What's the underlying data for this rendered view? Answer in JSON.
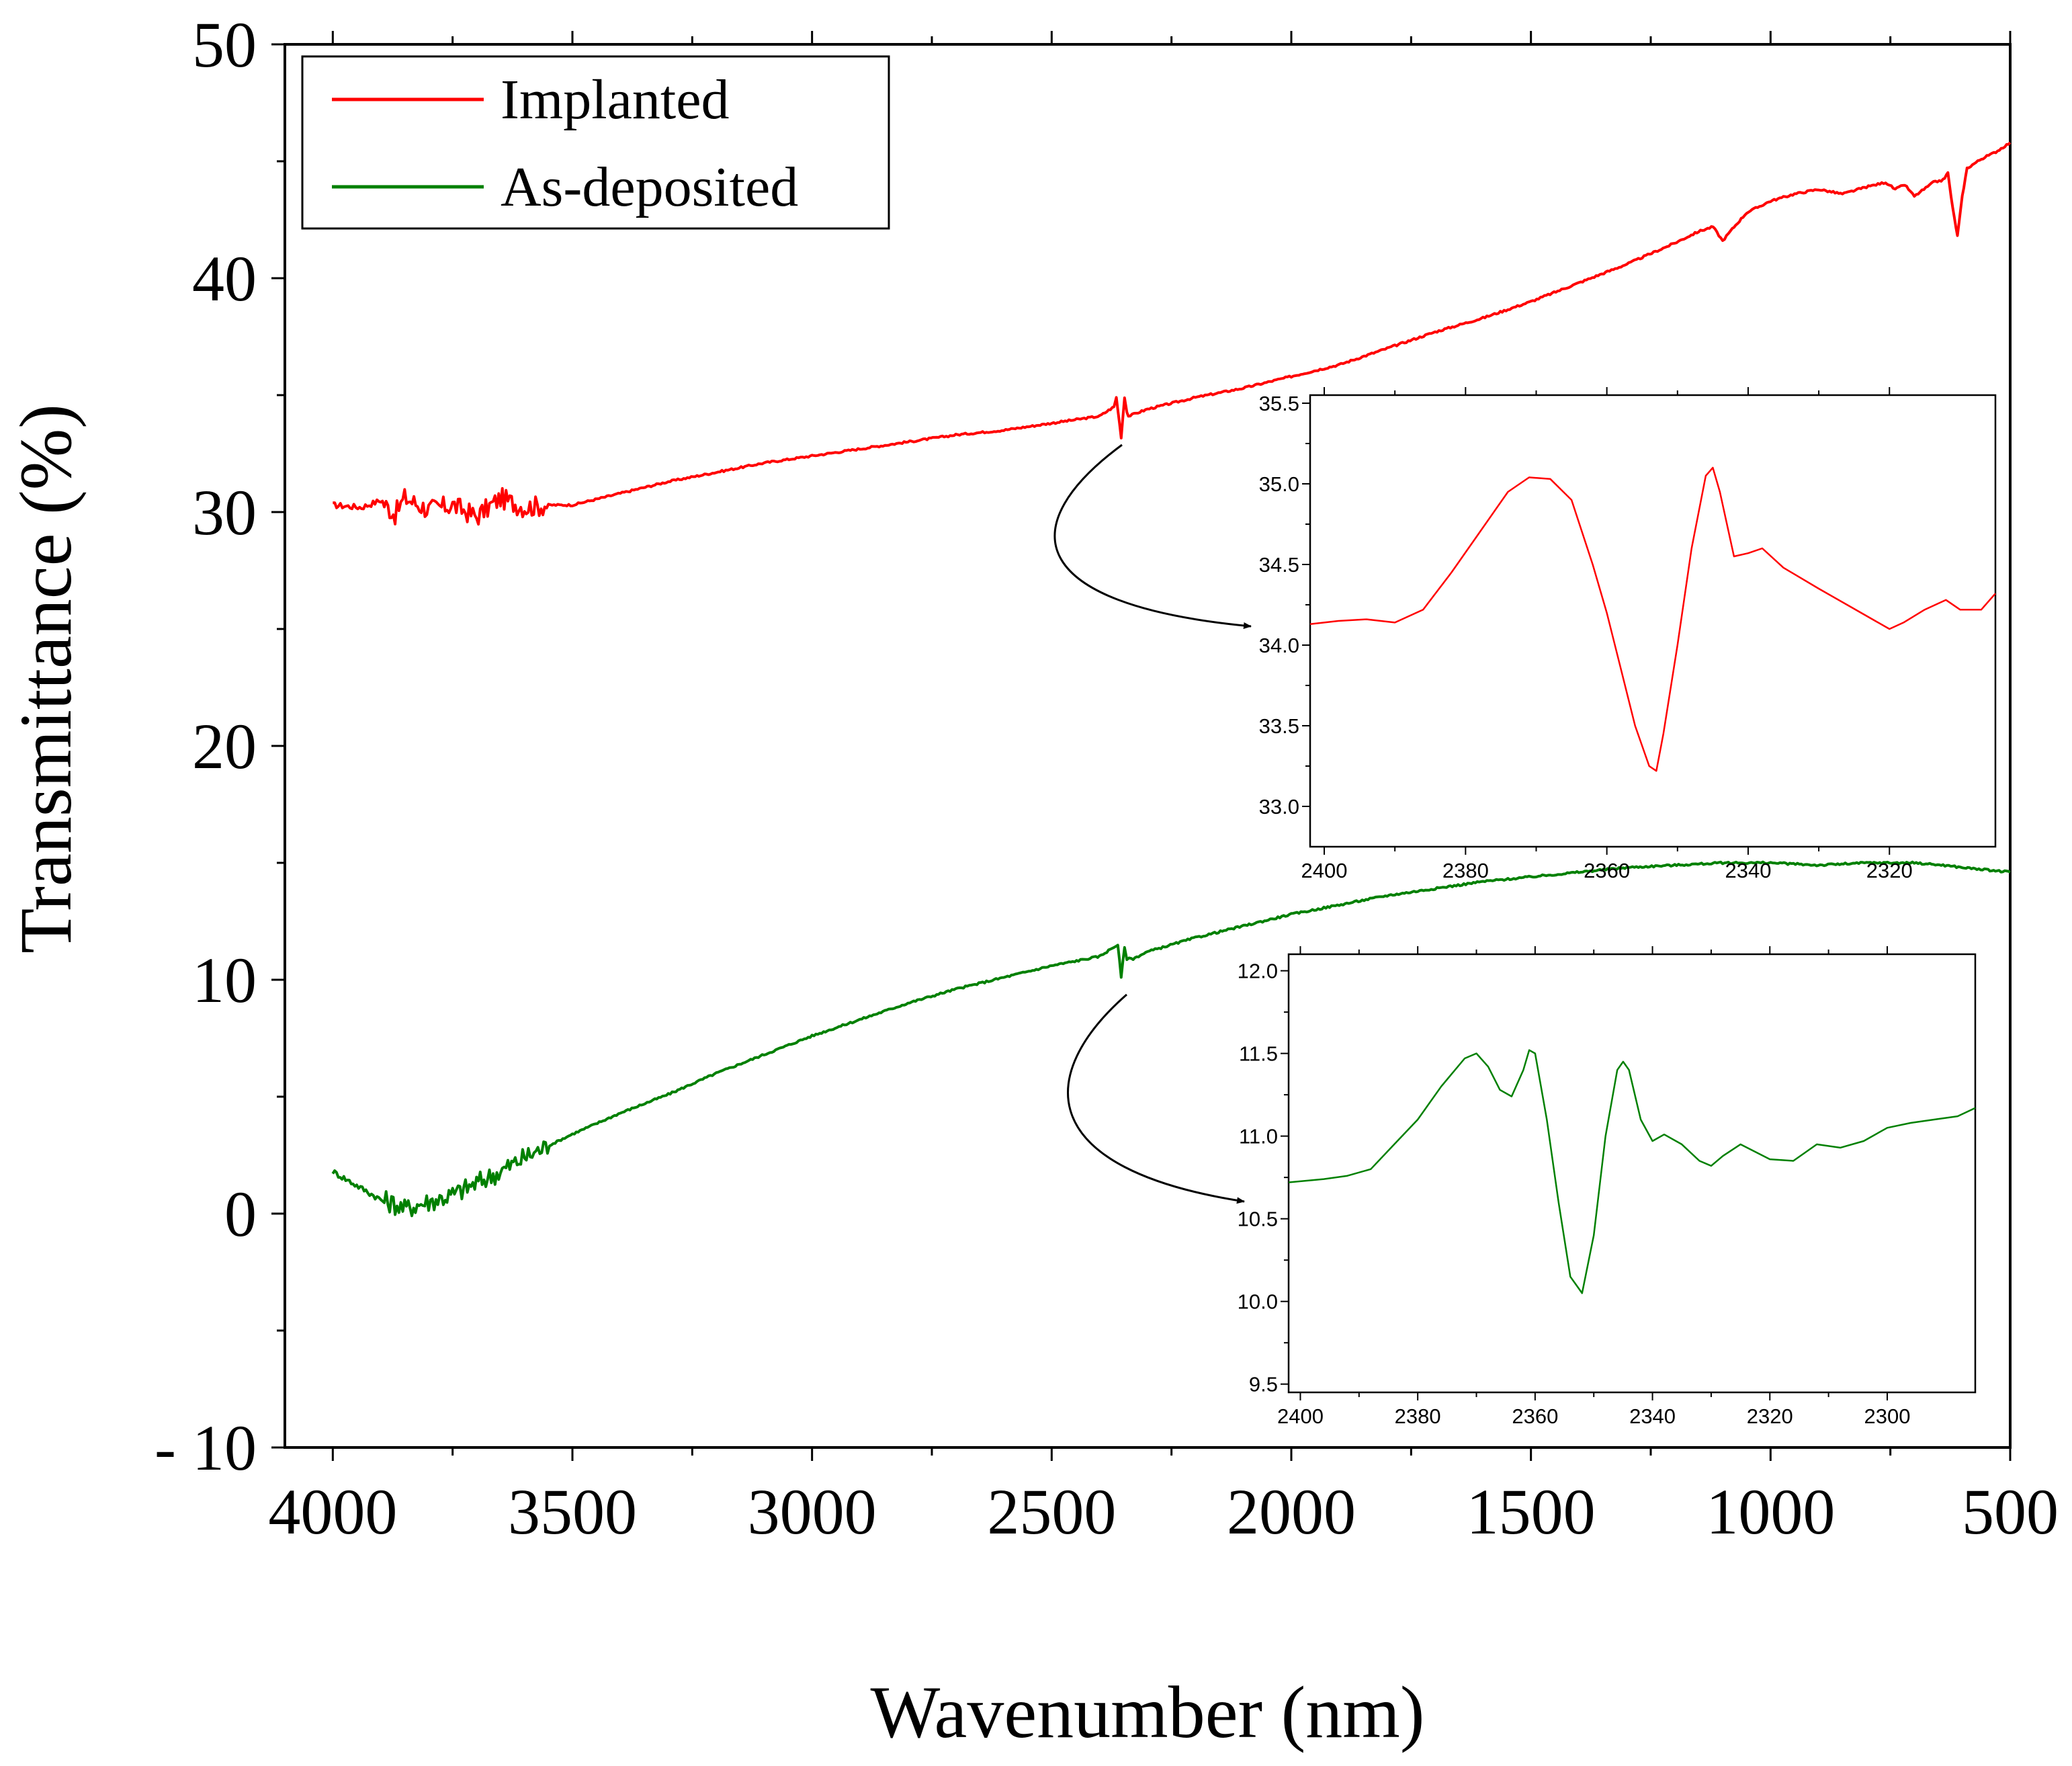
{
  "chart_data": [
    {
      "type": "line",
      "xlabel": "Wavenumber (nm)",
      "ylabel": "Transmittance (%)",
      "xlim": [
        4100,
        500
      ],
      "ylim": [
        -10,
        50
      ],
      "x_ticks": [
        4000,
        3500,
        3000,
        2500,
        2000,
        1500,
        1000,
        500
      ],
      "y_ticks": [
        -10,
        0,
        10,
        20,
        30,
        40,
        50
      ],
      "y_tick_labels": [
        "- 10",
        "0",
        "10",
        "20",
        "30",
        "40",
        "50"
      ],
      "legend_position": "top-left",
      "series": [
        {
          "name": "Implanted",
          "color": "#ff0000",
          "x": [
            4000,
            3940,
            3900,
            3870,
            3850,
            3800,
            3750,
            3700,
            3650,
            3600,
            3550,
            3500,
            3400,
            3300,
            3200,
            3100,
            3000,
            2900,
            2800,
            2700,
            2600,
            2500,
            2400,
            2370,
            2365,
            2355,
            2348,
            2343,
            2340,
            2300,
            2200,
            2100,
            2000,
            1900,
            1800,
            1700,
            1600,
            1500,
            1400,
            1300,
            1200,
            1150,
            1120,
            1100,
            1080,
            1050,
            1000,
            950,
            900,
            850,
            800,
            760,
            740,
            720,
            700,
            680,
            660,
            640,
            630,
            620,
            610,
            600,
            590,
            560,
            530,
            500
          ],
          "y": [
            30.3,
            30.2,
            30.5,
            29.9,
            30.6,
            30.1,
            30.3,
            29.8,
            30.6,
            30.2,
            30.3,
            30.3,
            30.8,
            31.3,
            31.7,
            32.1,
            32.4,
            32.7,
            33.0,
            33.3,
            33.5,
            33.8,
            34.1,
            34.5,
            34.9,
            33.2,
            34.9,
            34.3,
            34.1,
            34.4,
            34.9,
            35.3,
            35.8,
            36.3,
            37.0,
            37.7,
            38.3,
            39.0,
            39.8,
            40.6,
            41.5,
            42.0,
            42.2,
            41.6,
            42.1,
            42.8,
            43.3,
            43.6,
            43.8,
            43.6,
            43.9,
            44.1,
            43.8,
            44.0,
            43.5,
            43.8,
            44.1,
            44.2,
            44.5,
            43.0,
            41.8,
            43.5,
            44.7,
            45.1,
            45.4,
            45.8
          ]
        },
        {
          "name": "As-deposited",
          "color": "#008000",
          "x": [
            4000,
            3950,
            3900,
            3870,
            3850,
            3820,
            3800,
            3750,
            3700,
            3650,
            3600,
            3500,
            3400,
            3300,
            3200,
            3100,
            3000,
            2900,
            2800,
            2700,
            2600,
            2500,
            2400,
            2370,
            2362,
            2355,
            2348,
            2343,
            2330,
            2300,
            2200,
            2100,
            2000,
            1900,
            1800,
            1700,
            1600,
            1500,
            1400,
            1300,
            1200,
            1100,
            1000,
            900,
            800,
            700,
            640,
            600,
            550,
            500
          ],
          "y": [
            1.8,
            1.2,
            0.6,
            0.4,
            0.2,
            0.4,
            0.5,
            0.8,
            1.3,
            1.8,
            2.4,
            3.4,
            4.3,
            5.1,
            6.0,
            6.8,
            7.6,
            8.3,
            9.0,
            9.6,
            10.1,
            10.6,
            11.0,
            11.4,
            11.5,
            10.1,
            11.4,
            10.9,
            10.9,
            11.2,
            11.8,
            12.3,
            12.8,
            13.2,
            13.6,
            13.9,
            14.2,
            14.4,
            14.6,
            14.8,
            14.9,
            15.0,
            15.0,
            14.9,
            15.0,
            15.0,
            14.9,
            14.8,
            14.7,
            14.6
          ]
        }
      ]
    },
    {
      "type": "line",
      "xlim": [
        2402,
        2305
      ],
      "ylim": [
        32.75,
        35.55
      ],
      "x_ticks": [
        2400,
        2380,
        2360,
        2340,
        2320
      ],
      "y_ticks": [
        33.0,
        33.5,
        34.0,
        34.5,
        35.0,
        35.5
      ],
      "y_tick_labels": [
        "33.0",
        "33.5",
        "34.0",
        "34.5",
        "35.0",
        "35.5"
      ],
      "series": [
        {
          "color": "#ff0000",
          "x": [
            2402,
            2398,
            2394,
            2390,
            2386,
            2382,
            2378,
            2374,
            2371,
            2368,
            2365,
            2362,
            2360,
            2358,
            2356,
            2354,
            2353,
            2352,
            2350,
            2348,
            2346,
            2345,
            2344,
            2342,
            2340,
            2338,
            2335,
            2330,
            2326,
            2322,
            2320,
            2318,
            2315,
            2312,
            2310,
            2307,
            2305
          ],
          "y": [
            34.13,
            34.15,
            34.16,
            34.14,
            34.22,
            34.45,
            34.7,
            34.95,
            35.04,
            35.03,
            34.9,
            34.5,
            34.2,
            33.85,
            33.5,
            33.25,
            33.22,
            33.45,
            34.0,
            34.6,
            35.05,
            35.1,
            34.95,
            34.55,
            34.57,
            34.6,
            34.48,
            34.35,
            34.25,
            34.15,
            34.1,
            34.14,
            34.22,
            34.28,
            34.22,
            34.22,
            34.32
          ]
        }
      ]
    },
    {
      "type": "line",
      "xlim": [
        2402,
        2285
      ],
      "ylim": [
        9.45,
        12.1
      ],
      "x_ticks": [
        2400,
        2380,
        2360,
        2340,
        2320,
        2300
      ],
      "y_ticks": [
        9.5,
        10.0,
        10.5,
        11.0,
        11.5,
        12.0
      ],
      "y_tick_labels": [
        "9.5",
        "10.0",
        "10.5",
        "11.0",
        "11.5",
        "12.0"
      ],
      "series": [
        {
          "color": "#008000",
          "x": [
            2402,
            2396,
            2392,
            2388,
            2384,
            2380,
            2376,
            2372,
            2370,
            2368,
            2366,
            2364,
            2362,
            2361,
            2360,
            2358,
            2356,
            2354,
            2352,
            2350,
            2348,
            2346,
            2345,
            2344,
            2342,
            2340,
            2338,
            2335,
            2332,
            2330,
            2328,
            2325,
            2320,
            2316,
            2312,
            2308,
            2304,
            2300,
            2296,
            2292,
            2288,
            2285
          ],
          "y": [
            10.72,
            10.74,
            10.76,
            10.8,
            10.95,
            11.1,
            11.3,
            11.47,
            11.5,
            11.42,
            11.28,
            11.24,
            11.4,
            11.52,
            11.5,
            11.1,
            10.6,
            10.15,
            10.05,
            10.4,
            11.0,
            11.4,
            11.45,
            11.4,
            11.1,
            10.97,
            11.01,
            10.95,
            10.85,
            10.82,
            10.88,
            10.95,
            10.86,
            10.85,
            10.95,
            10.93,
            10.97,
            11.05,
            11.08,
            11.1,
            11.12,
            11.17
          ]
        }
      ]
    }
  ]
}
